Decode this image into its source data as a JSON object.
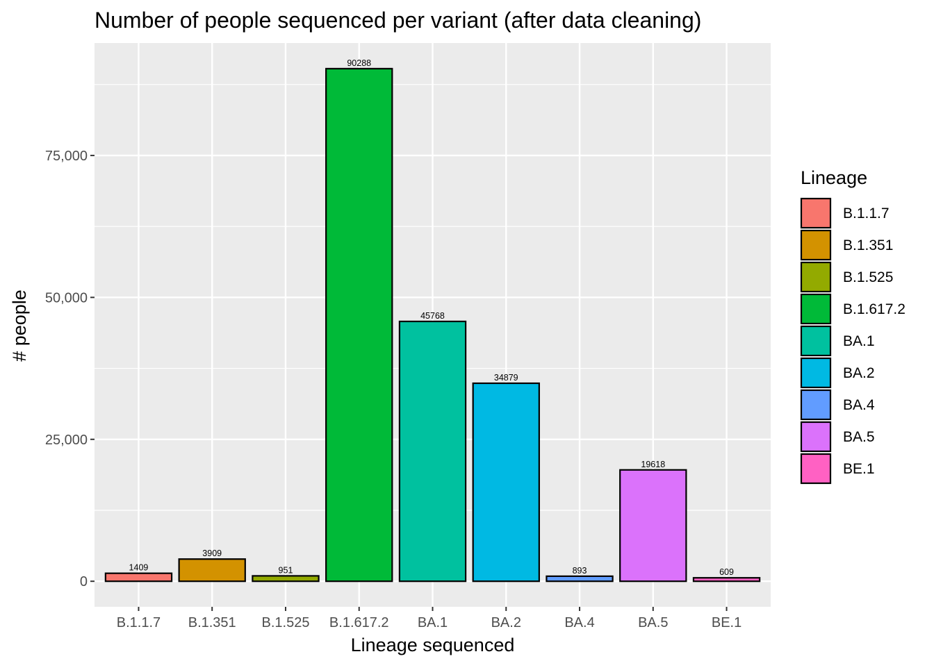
{
  "chart_data": {
    "type": "bar",
    "title": "Number of people sequenced per variant (after data cleaning)",
    "xlabel": "Lineage sequenced",
    "ylabel": "# people",
    "categories": [
      "B.1.1.7",
      "B.1.351",
      "B.1.525",
      "B.1.617.2",
      "BA.1",
      "BA.2",
      "BA.4",
      "BA.5",
      "BE.1"
    ],
    "values": [
      1409,
      3909,
      951,
      90288,
      45768,
      34879,
      893,
      19618,
      609
    ],
    "value_labels": [
      "1409",
      "3909",
      "951",
      "90288",
      "45768",
      "34879",
      "893",
      "19618",
      "609"
    ],
    "colors": [
      "#F8766D",
      "#D39200",
      "#93AA00",
      "#00BA38",
      "#00C19F",
      "#00B9E3",
      "#619CFF",
      "#DB72FB",
      "#FF61C3"
    ],
    "ylim": [
      -4500,
      94800
    ],
    "y_ticks": [
      0,
      25000,
      50000,
      75000
    ],
    "y_tick_labels": [
      "0",
      "25,000",
      "50,000",
      "75,000"
    ],
    "grid": true,
    "panel_background": "#EBEBEB",
    "legend": {
      "title": "Lineage",
      "placement": "right",
      "entries": [
        "B.1.1.7",
        "B.1.351",
        "B.1.525",
        "B.1.617.2",
        "BA.1",
        "BA.2",
        "BA.4",
        "BA.5",
        "BE.1"
      ]
    }
  }
}
